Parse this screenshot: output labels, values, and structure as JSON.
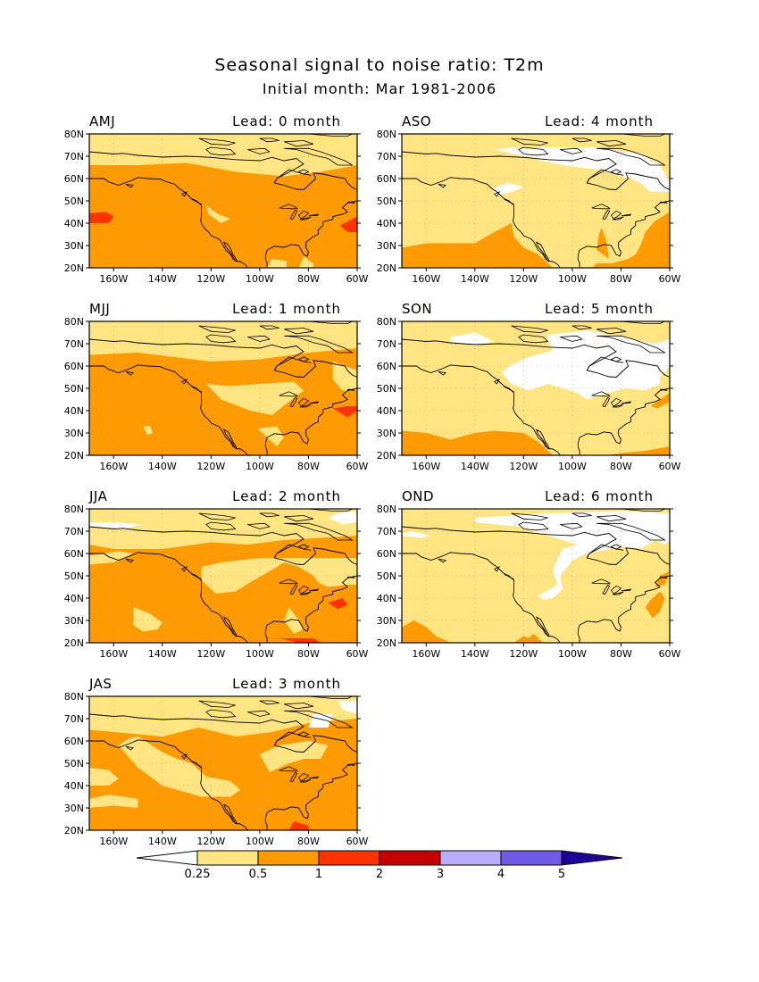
{
  "title": "Seasonal signal to noise ratio: T2m",
  "subtitle": "Initial month: Mar 1981-2006",
  "lat_ticks": [
    "80N",
    "70N",
    "60N",
    "50N",
    "40N",
    "30N",
    "20N"
  ],
  "lon_ticks": [
    "160W",
    "140W",
    "120W",
    "100W",
    "80W",
    "60W"
  ],
  "panels": [
    {
      "season": "AMJ",
      "lead": "Lead: 0 month",
      "level": 2
    },
    {
      "season": "ASO",
      "lead": "Lead: 4 month",
      "level": 1
    },
    {
      "season": "MJJ",
      "lead": "Lead: 1 month",
      "level": 2
    },
    {
      "season": "SON",
      "lead": "Lead: 5 month",
      "level": 1
    },
    {
      "season": "JJA",
      "lead": "Lead: 2 month",
      "level": 2
    },
    {
      "season": "OND",
      "lead": "Lead: 6 month",
      "level": 1
    },
    {
      "season": "JAS",
      "lead": "Lead: 3 month",
      "level": 2
    }
  ],
  "colorbar": {
    "labels": [
      "0.25",
      "0.5",
      "1",
      "2",
      "3",
      "4",
      "5"
    ],
    "colors": [
      "#ffffff",
      "#fee581",
      "#ff9a00",
      "#ff3300",
      "#c40000",
      "#bbaaff",
      "#6e5ce6",
      "#200096"
    ]
  },
  "colors": {
    "land_line": "#000000",
    "grid": "#999999",
    "level1": "#fee581",
    "level2": "#ff9a00",
    "level3": "#ff3300",
    "white": "#ffffff"
  }
}
